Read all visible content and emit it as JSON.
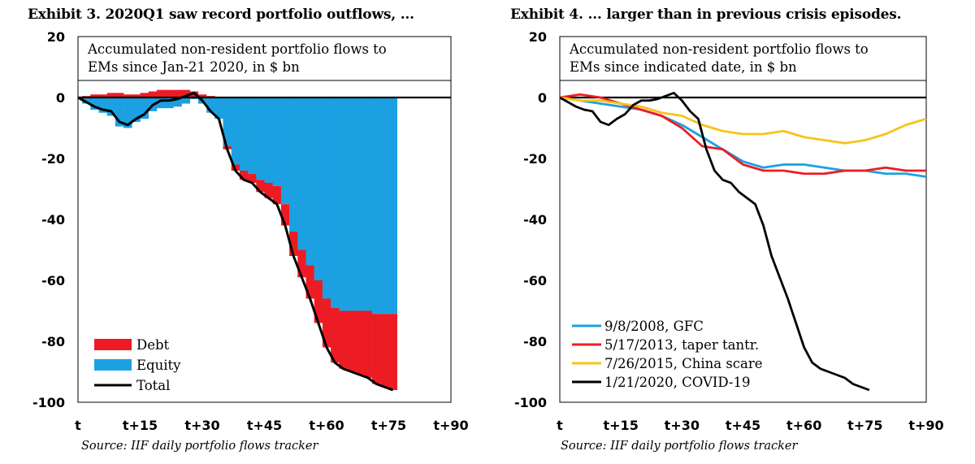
{
  "exhibits": [
    {
      "title": "Exhibit 3. 2020Q1 saw record portfolio outflows, ...",
      "source": "Source: IIF daily portfolio flows tracker"
    },
    {
      "title": "Exhibit 4. ... larger than in previous crisis episodes.",
      "source": "Source: IIF daily portfolio flows tracker"
    }
  ],
  "chart_data": [
    {
      "type": "bar",
      "subtitle_lines": [
        "Accumulated non-resident portfolio flows to",
        "EMs since Jan-21 2020, in $ bn"
      ],
      "x_ticks": [
        "t",
        "t+15",
        "t+30",
        "t+45",
        "t+60",
        "t+75",
        "t+90"
      ],
      "x_tick_values": [
        0,
        15,
        30,
        45,
        60,
        75,
        90
      ],
      "xlim": [
        0,
        90
      ],
      "y_ticks": [
        "20",
        "0",
        "-20",
        "-40",
        "-60",
        "-80",
        "-100"
      ],
      "y_tick_values": [
        20,
        0,
        -20,
        -40,
        -60,
        -80,
        -100
      ],
      "ylim": [
        -100,
        20
      ],
      "legend_position": "bottom-left",
      "x": [
        0,
        2,
        4,
        6,
        8,
        10,
        12,
        14,
        16,
        18,
        20,
        22,
        24,
        26,
        28,
        30,
        32,
        34,
        36,
        38,
        40,
        42,
        44,
        46,
        48,
        50,
        52,
        54,
        56,
        58,
        60,
        62,
        64,
        66,
        68,
        70,
        72,
        74,
        76
      ],
      "series": [
        {
          "name": "Debt",
          "kind": "bar",
          "color": "#ed1c24",
          "values": [
            0,
            0.5,
            1,
            1,
            1.5,
            1.5,
            1,
            1,
            1.5,
            2,
            2.5,
            2.5,
            2.5,
            2.5,
            2,
            1,
            0.5,
            0,
            -1,
            -2,
            -3,
            -3,
            -4,
            -5,
            -6,
            -7,
            -8,
            -9,
            -11,
            -14,
            -16,
            -18,
            -19,
            -20,
            -21,
            -22,
            -23,
            -24,
            -25
          ]
        },
        {
          "name": "Equity",
          "kind": "bar",
          "color": "#1ba1e2",
          "values": [
            0,
            -2,
            -4,
            -5,
            -6,
            -9.5,
            -10,
            -8,
            -7,
            -4.5,
            -3.5,
            -3.5,
            -3,
            -2,
            -0.5,
            -2,
            -5,
            -7,
            -16,
            -22,
            -24,
            -25,
            -27,
            -28,
            -29,
            -35,
            -44,
            -50,
            -55,
            -60,
            -66,
            -69,
            -70,
            -70,
            -70,
            -70,
            -71,
            -71,
            -71
          ]
        },
        {
          "name": "Total",
          "kind": "line",
          "color": "#000000",
          "values": [
            0,
            -1.5,
            -3,
            -4,
            -4.5,
            -8,
            -9,
            -7,
            -5.5,
            -2.5,
            -1,
            -1,
            -0.5,
            0.5,
            1.5,
            -1,
            -4.5,
            -7,
            -17,
            -24,
            -27,
            -28,
            -31,
            -33,
            -35,
            -42,
            -52,
            -59,
            -66,
            -74,
            -82,
            -87,
            -89,
            -90,
            -91,
            -92,
            -94,
            -95,
            -96
          ]
        }
      ]
    },
    {
      "type": "line",
      "subtitle_lines": [
        "Accumulated non-resident portfolio flows to",
        "EMs since indicated date, in $ bn"
      ],
      "x_ticks": [
        "t",
        "t+15",
        "t+30",
        "t+45",
        "t+60",
        "t+75",
        "t+90"
      ],
      "x_tick_values": [
        0,
        15,
        30,
        45,
        60,
        75,
        90
      ],
      "xlim": [
        0,
        90
      ],
      "y_ticks": [
        "20",
        "0",
        "-20",
        "-40",
        "-60",
        "-80",
        "-100"
      ],
      "y_tick_values": [
        20,
        0,
        -20,
        -40,
        -60,
        -80,
        -100
      ],
      "ylim": [
        -100,
        20
      ],
      "legend_position": "bottom-left",
      "series": [
        {
          "name": "9/8/2008, GFC",
          "color": "#1ba1e2",
          "x": [
            0,
            5,
            10,
            15,
            20,
            25,
            30,
            35,
            40,
            45,
            50,
            55,
            60,
            65,
            70,
            75,
            80,
            85,
            90
          ],
          "values": [
            0,
            -1,
            -2,
            -3,
            -4,
            -6,
            -9,
            -13,
            -17,
            -21,
            -23,
            -22,
            -22,
            -23,
            -24,
            -24,
            -25,
            -25,
            -26
          ]
        },
        {
          "name": "5/17/2013, taper tantr.",
          "color": "#ed1c24",
          "x": [
            0,
            5,
            10,
            15,
            20,
            25,
            30,
            35,
            40,
            45,
            50,
            55,
            60,
            65,
            70,
            75,
            80,
            85,
            90
          ],
          "values": [
            0,
            1,
            0,
            -2,
            -4,
            -6,
            -10,
            -16,
            -17,
            -22,
            -24,
            -24,
            -25,
            -25,
            -24,
            -24,
            -23,
            -24,
            -24
          ]
        },
        {
          "name": "7/26/2015, China scare",
          "color": "#f7c31a",
          "x": [
            0,
            5,
            10,
            15,
            20,
            25,
            30,
            35,
            40,
            45,
            50,
            55,
            60,
            65,
            70,
            75,
            80,
            85,
            90
          ],
          "values": [
            0,
            -1,
            -1,
            -2,
            -3,
            -5,
            -6,
            -9,
            -11,
            -12,
            -12,
            -11,
            -13,
            -14,
            -15,
            -14,
            -12,
            -9,
            -7
          ]
        },
        {
          "name": "1/21/2020, COVID-19",
          "color": "#000000",
          "x": [
            0,
            2,
            4,
            6,
            8,
            10,
            12,
            14,
            16,
            18,
            20,
            22,
            24,
            26,
            28,
            30,
            32,
            34,
            36,
            38,
            40,
            42,
            44,
            46,
            48,
            50,
            52,
            54,
            56,
            58,
            60,
            62,
            64,
            66,
            68,
            70,
            72,
            74,
            76
          ],
          "values": [
            0,
            -1.5,
            -3,
            -4,
            -4.5,
            -8,
            -9,
            -7,
            -5.5,
            -2.5,
            -1,
            -1,
            -0.5,
            0.5,
            1.5,
            -1,
            -4.5,
            -7,
            -17,
            -24,
            -27,
            -28,
            -31,
            -33,
            -35,
            -42,
            -52,
            -59,
            -66,
            -74,
            -82,
            -87,
            -89,
            -90,
            -91,
            -92,
            -94,
            -95,
            -96
          ]
        }
      ]
    }
  ]
}
